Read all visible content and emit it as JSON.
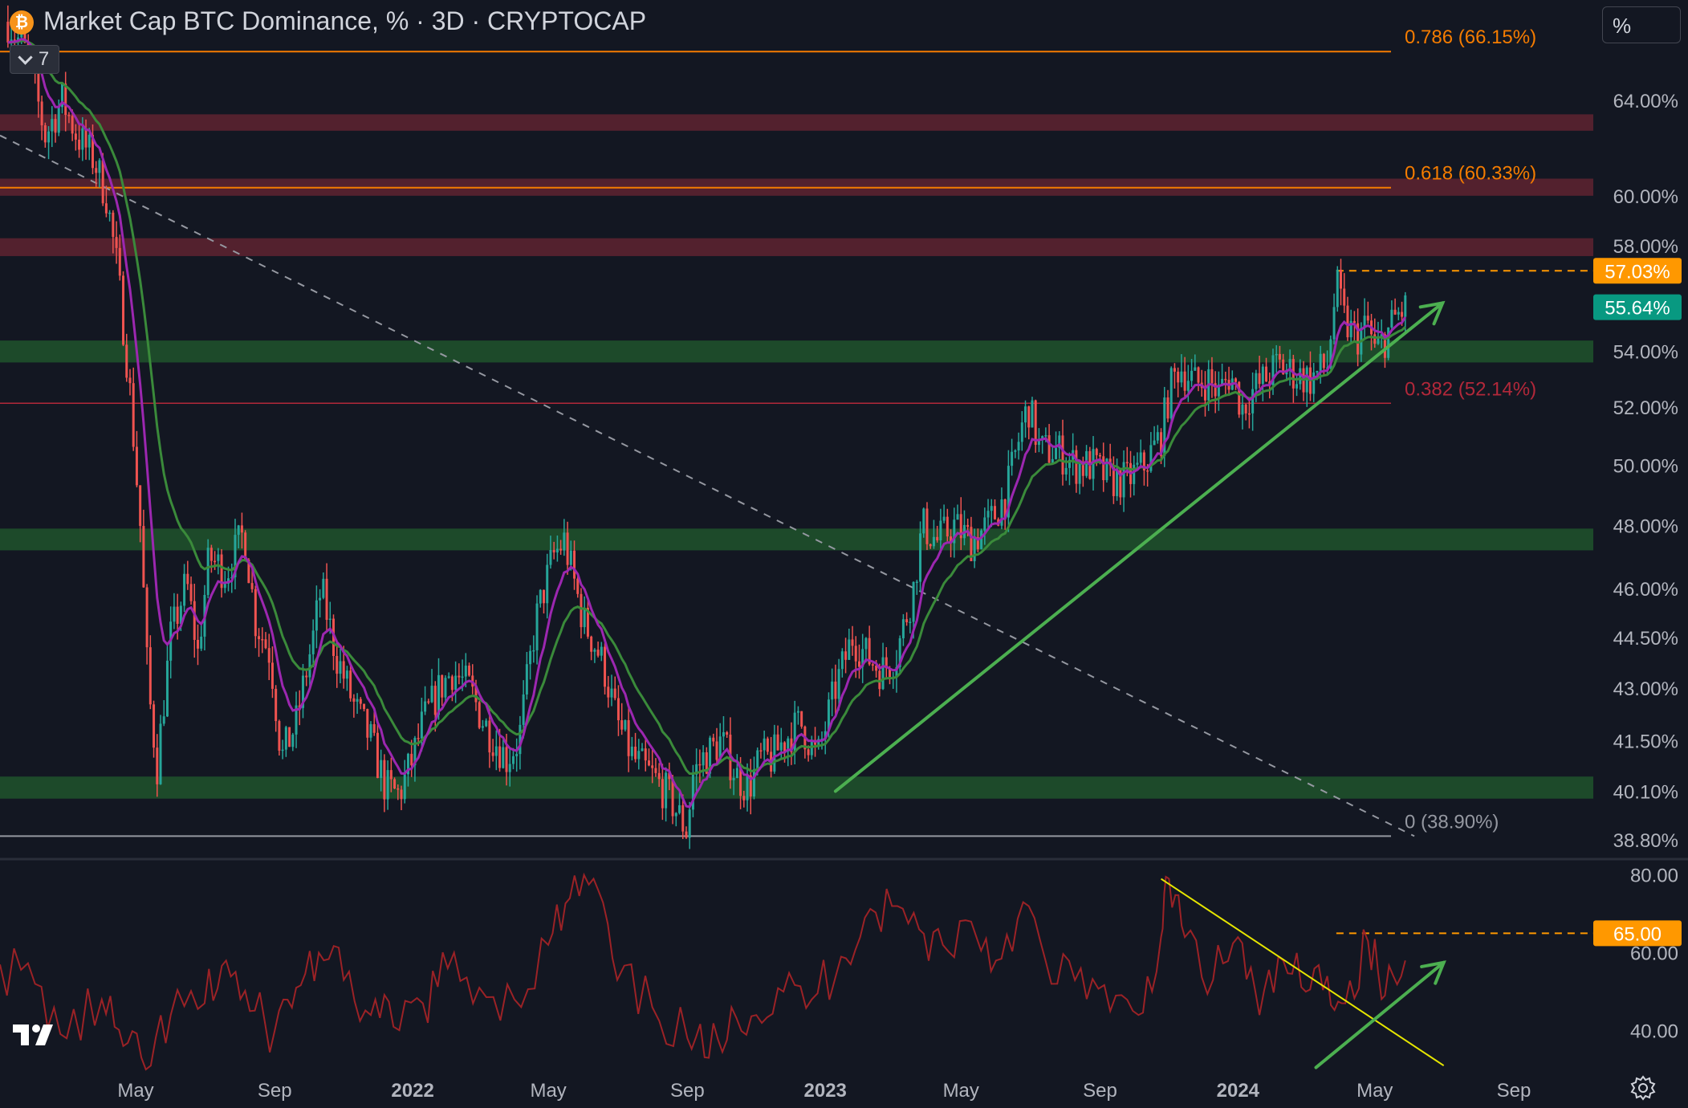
{
  "header": {
    "coin_icon": "bitcoin-icon",
    "title": "Market Cap BTC Dominance, % · 3D · CRYPTOCAP",
    "indicator_count": "7",
    "unit_button": "%"
  },
  "colors": {
    "background": "#131722",
    "candle_up": "#26a69a",
    "candle_down": "#ef5350",
    "ema_fast": "#9c27b0",
    "ema_slow": "#3a8a3a",
    "fib_orange": "#f57c00",
    "resistance_band": "#5b2230",
    "support_band": "#1e4d2b",
    "trend_arrow": "#4caf50",
    "rsi_line": "#9b2226",
    "rsi_trendline": "#e6e600",
    "price_badge": "#089981",
    "level_badge": "#ff9800"
  },
  "chart_data": [
    {
      "type": "line",
      "title": "Market Cap BTC Dominance, % · 3D · CRYPTOCAP",
      "ylabel": "%",
      "y_scale": "log",
      "ylim": [
        38.3,
        68.5
      ],
      "x_ticks": [
        "May",
        "Sep",
        "2022",
        "May",
        "Sep",
        "2023",
        "May",
        "Sep",
        "2024",
        "May",
        "Sep"
      ],
      "y_ticks": [
        "64.00%",
        "60.00%",
        "58.00%",
        "54.00%",
        "52.00%",
        "50.00%",
        "48.00%",
        "46.00%",
        "44.50%",
        "43.00%",
        "41.50%",
        "40.10%",
        "38.80%"
      ],
      "series": [
        {
          "x": [
            "2021-01-08",
            "2021-01-25",
            "2021-02-10",
            "2021-02-25",
            "2021-03-10",
            "2021-03-25",
            "2021-04-05",
            "2021-04-15",
            "2021-04-25",
            "2021-05-05",
            "2021-05-12",
            "2021-05-20",
            "2021-06-01",
            "2021-06-15",
            "2021-06-25",
            "2021-07-05",
            "2021-07-20",
            "2021-08-05",
            "2021-08-15",
            "2021-08-28",
            "2021-09-07",
            "2021-09-20",
            "2021-10-05",
            "2021-10-12",
            "2021-10-25",
            "2021-11-10",
            "2021-11-25",
            "2021-12-08",
            "2021-12-20",
            "2022-01-01",
            "2022-01-10",
            "2022-01-25",
            "2022-02-05",
            "2022-02-20",
            "2022-03-05",
            "2022-03-25",
            "2022-04-05",
            "2022-04-20",
            "2022-05-05",
            "2022-05-15",
            "2022-06-01",
            "2022-06-15",
            "2022-06-20",
            "2022-07-01",
            "2022-07-15",
            "2022-08-01",
            "2022-08-15",
            "2022-09-01",
            "2022-09-05",
            "2022-09-15",
            "2022-10-01",
            "2022-10-15",
            "2022-10-25",
            "2022-11-05",
            "2022-11-15",
            "2022-11-25",
            "2022-12-10",
            "2022-12-25",
            "2023-01-10",
            "2023-01-25",
            "2023-02-05",
            "2023-02-20",
            "2023-03-05",
            "2023-03-20",
            "2023-03-28",
            "2023-04-10",
            "2023-04-25",
            "2023-05-10",
            "2023-05-25",
            "2023-06-10",
            "2023-06-25",
            "2023-06-30",
            "2023-07-10",
            "2023-07-25",
            "2023-08-10",
            "2023-08-25",
            "2023-09-10",
            "2023-09-25",
            "2023-10-10",
            "2023-10-25",
            "2023-11-01",
            "2023-11-10",
            "2023-11-25",
            "2023-12-05",
            "2023-12-15",
            "2023-12-25",
            "2024-01-05",
            "2024-01-12",
            "2024-01-25",
            "2024-02-05",
            "2024-02-20",
            "2024-03-05",
            "2024-03-20",
            "2024-03-28",
            "2024-04-05",
            "2024-04-15",
            "2024-04-25",
            "2024-05-01",
            "2024-05-10",
            "2024-05-20",
            "2024-05-28"
          ],
          "y": [
            67.5,
            66.0,
            62.5,
            64.0,
            62.5,
            61.5,
            60.0,
            57.0,
            53.0,
            48.0,
            43.0,
            40.8,
            44.5,
            46.2,
            44.0,
            47.0,
            46.5,
            47.8,
            45.0,
            44.0,
            41.0,
            42.0,
            44.5,
            46.0,
            44.0,
            42.5,
            41.5,
            40.2,
            40.0,
            41.0,
            42.0,
            43.0,
            43.5,
            43.0,
            42.0,
            41.0,
            41.5,
            45.0,
            47.0,
            47.5,
            45.0,
            44.0,
            43.5,
            42.0,
            41.0,
            40.5,
            40.0,
            39.0,
            40.5,
            41.0,
            41.5,
            40.5,
            40.2,
            41.0,
            41.0,
            41.5,
            42.0,
            41.0,
            43.0,
            44.5,
            44.0,
            43.5,
            44.0,
            46.0,
            48.0,
            47.5,
            48.0,
            47.5,
            48.0,
            49.0,
            51.5,
            52.0,
            50.5,
            50.5,
            50.0,
            50.0,
            49.5,
            49.5,
            50.0,
            51.0,
            52.5,
            53.5,
            52.8,
            53.0,
            52.5,
            53.2,
            52.0,
            52.5,
            53.0,
            53.5,
            53.2,
            53.0,
            53.5,
            56.5,
            55.0,
            54.5,
            55.0,
            54.0,
            54.5,
            55.3,
            55.6
          ]
        }
      ],
      "fibonacci_levels": [
        {
          "label": "0.786 (66.15%)",
          "value": 66.15
        },
        {
          "label": "0.618 (60.33%)",
          "value": 60.33
        },
        {
          "label": "0.382 (52.14%)",
          "value": 52.14
        },
        {
          "label": "0 (38.90%)",
          "value": 38.9
        }
      ],
      "resistance_zones": [
        [
          62.7,
          63.4
        ],
        [
          60.0,
          60.7
        ],
        [
          57.6,
          58.3
        ]
      ],
      "support_zones": [
        [
          53.6,
          54.4
        ],
        [
          47.2,
          47.9
        ],
        [
          39.9,
          40.5
        ]
      ],
      "current_price_label": "55.64%",
      "current_price": 55.64,
      "dashed_level_label": "57.03%",
      "dashed_level": 57.03,
      "diagonal_dashed_line": [
        [
          "2021-01-01",
          62.5
        ],
        [
          "2024-06-05",
          38.9
        ]
      ],
      "trend_arrow": [
        [
          "2023-01-10",
          40.1
        ],
        [
          "2024-06-30",
          55.8
        ]
      ]
    },
    {
      "type": "line",
      "title": "",
      "ylim": [
        30,
        82
      ],
      "y_ticks": [
        "80.00",
        "60.00",
        "40.00"
      ],
      "x": [
        "2021-01-01",
        "2021-02-01",
        "2021-03-01",
        "2021-04-01",
        "2021-04-20",
        "2021-05-10",
        "2021-06-01",
        "2021-07-01",
        "2021-07-20",
        "2021-08-10",
        "2021-09-01",
        "2021-09-20",
        "2021-10-10",
        "2021-11-01",
        "2021-11-25",
        "2021-12-15",
        "2022-01-10",
        "2022-02-01",
        "2022-03-01",
        "2022-04-01",
        "2022-05-01",
        "2022-05-20",
        "2022-06-10",
        "2022-07-01",
        "2022-08-01",
        "2022-09-01",
        "2022-09-20",
        "2022-10-10",
        "2022-11-01",
        "2022-11-25",
        "2022-12-20",
        "2023-01-15",
        "2023-02-05",
        "2023-03-01",
        "2023-03-25",
        "2023-04-15",
        "2023-05-10",
        "2023-06-01",
        "2023-06-25",
        "2023-07-20",
        "2023-08-15",
        "2023-09-10",
        "2023-10-05",
        "2023-10-25",
        "2023-11-01",
        "2023-11-15",
        "2023-12-10",
        "2024-01-01",
        "2024-01-20",
        "2024-02-10",
        "2024-03-01",
        "2024-03-20",
        "2024-04-05",
        "2024-04-25",
        "2024-05-10",
        "2024-05-28"
      ],
      "values": [
        57,
        52,
        38,
        48,
        36,
        30,
        44,
        47,
        58,
        45,
        40,
        51,
        60,
        53,
        44,
        41,
        47,
        56,
        51,
        48,
        62,
        74,
        79,
        53,
        46,
        38,
        33,
        46,
        44,
        50,
        48,
        59,
        69,
        72,
        66,
        62,
        68,
        58,
        73,
        52,
        56,
        45,
        44,
        64,
        79,
        64,
        53,
        64,
        44,
        58,
        50,
        54,
        47,
        63,
        49,
        58
      ],
      "reference_level_label": "65.00",
      "reference_level": 65.0,
      "trendline": [
        [
          "2023-10-25",
          79.0
        ],
        [
          "2024-07-01",
          31.0
        ]
      ],
      "trend_arrow": [
        [
          "2024-03-10",
          30.5
        ],
        [
          "2024-07-01",
          57.5
        ]
      ]
    }
  ]
}
